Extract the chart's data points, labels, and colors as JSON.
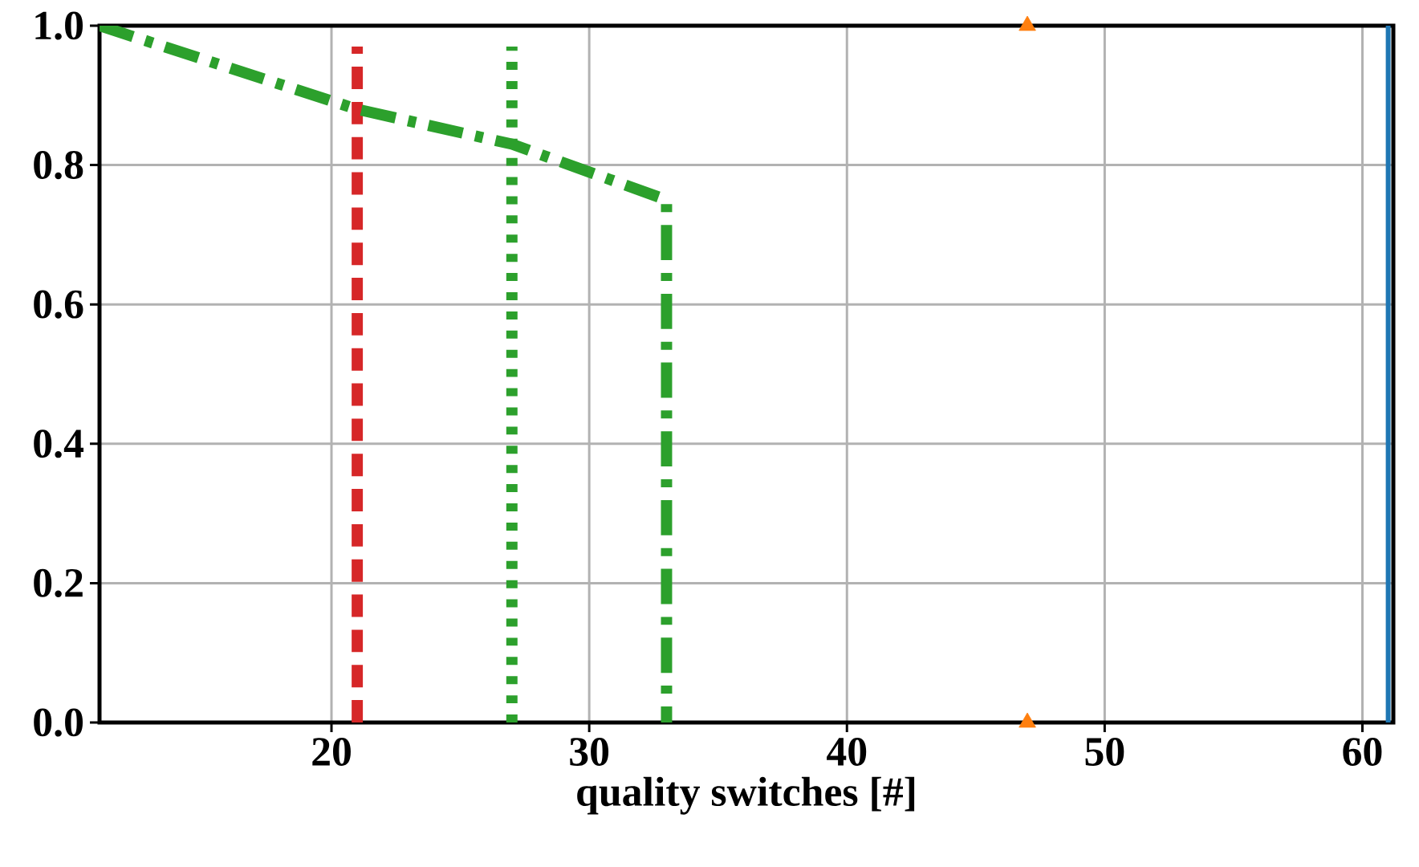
{
  "chart_data": {
    "type": "line",
    "xlabel": "quality switches [#]",
    "xlim": [
      11,
      61.2
    ],
    "xticks": [
      20,
      30,
      40,
      50,
      60
    ],
    "ylim": [
      0,
      1
    ],
    "yticks": [
      {
        "value": 0,
        "label": "0.0"
      },
      {
        "value": 0.2,
        "label": "0.2"
      },
      {
        "value": 0.4,
        "label": "0.4"
      },
      {
        "value": 0.6,
        "label": "0.6"
      },
      {
        "value": 0.8,
        "label": "0.8"
      },
      {
        "value": 1,
        "label": "1.0"
      }
    ],
    "grid": true,
    "series": [
      {
        "color": "#1f77b4",
        "x": [
          61,
          61
        ],
        "values": [
          0,
          1
        ],
        "line_style": "solid",
        "marker": "none"
      },
      {
        "type": "scatter",
        "color": "#ff7f0e",
        "x": [
          47,
          47
        ],
        "values": [
          0,
          1
        ],
        "marker": "triangle"
      },
      {
        "color": "#d62728",
        "x": [
          21,
          21
        ],
        "values": [
          0,
          0.97
        ],
        "line_style": "dashed",
        "marker": "none"
      },
      {
        "color": "#2ca02c",
        "x": [
          27,
          27
        ],
        "values": [
          0,
          0.97
        ],
        "line_style": "dotted",
        "marker": "none"
      },
      {
        "color": "#2ca02c",
        "x": [
          11,
          21,
          27,
          33,
          33
        ],
        "values": [
          1,
          0.88,
          0.83,
          0.75,
          0
        ],
        "line_style": "dashdot",
        "marker": "none"
      }
    ]
  }
}
